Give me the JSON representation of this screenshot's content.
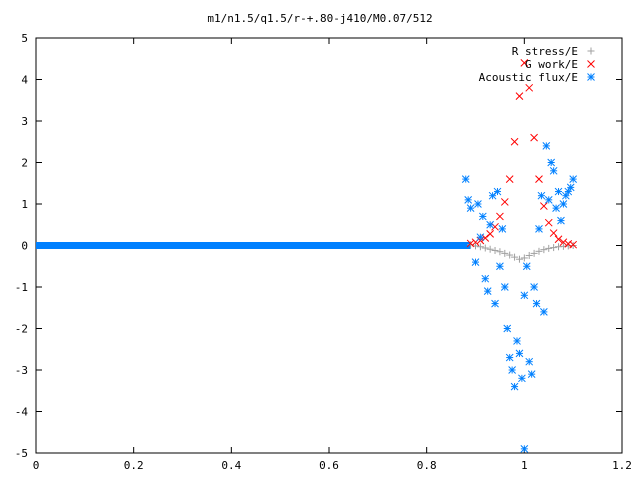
{
  "chart_data": {
    "type": "scatter",
    "title": "m1/n1.5/q1.5/r-+.80-j410/M0.07/512",
    "xlabel": "",
    "ylabel": "",
    "xlim": [
      0,
      1.2
    ],
    "ylim": [
      -5,
      5
    ],
    "x_ticks": [
      "0",
      "0.2",
      "0.4",
      "0.6",
      "0.8",
      "1",
      "1.2"
    ],
    "y_ticks": [
      "5",
      "4",
      "3",
      "2",
      "1",
      "0",
      "-1",
      "-2",
      "-3",
      "-4",
      "-5"
    ],
    "grid": false,
    "legend_position": "top-right",
    "series": [
      {
        "name": "R stress/E",
        "marker": "plus",
        "color": "#a0a0a0",
        "points": [
          [
            0.89,
            0.02
          ],
          [
            0.9,
            -0.01
          ],
          [
            0.91,
            -0.03
          ],
          [
            0.92,
            -0.06
          ],
          [
            0.93,
            -0.09
          ],
          [
            0.94,
            -0.12
          ],
          [
            0.95,
            -0.15
          ],
          [
            0.96,
            -0.19
          ],
          [
            0.97,
            -0.23
          ],
          [
            0.98,
            -0.28
          ],
          [
            0.99,
            -0.33
          ],
          [
            1.0,
            -0.3
          ],
          [
            1.01,
            -0.24
          ],
          [
            1.02,
            -0.19
          ],
          [
            1.03,
            -0.14
          ],
          [
            1.04,
            -0.1
          ],
          [
            1.05,
            -0.07
          ],
          [
            1.06,
            -0.05
          ],
          [
            1.07,
            -0.03
          ],
          [
            1.08,
            -0.02
          ],
          [
            1.09,
            -0.01
          ],
          [
            1.1,
            0.0
          ]
        ]
      },
      {
        "name": "G work/E",
        "marker": "cross",
        "color": "#ff0000",
        "points": [
          [
            0.89,
            0.05
          ],
          [
            0.9,
            0.08
          ],
          [
            0.91,
            0.12
          ],
          [
            0.92,
            0.18
          ],
          [
            0.93,
            0.28
          ],
          [
            0.94,
            0.45
          ],
          [
            0.95,
            0.7
          ],
          [
            0.96,
            1.05
          ],
          [
            0.97,
            1.6
          ],
          [
            0.98,
            2.5
          ],
          [
            0.99,
            3.6
          ],
          [
            1.0,
            4.4
          ],
          [
            1.01,
            3.8
          ],
          [
            1.02,
            2.6
          ],
          [
            1.03,
            1.6
          ],
          [
            1.04,
            0.95
          ],
          [
            1.05,
            0.55
          ],
          [
            1.06,
            0.3
          ],
          [
            1.07,
            0.15
          ],
          [
            1.08,
            0.08
          ],
          [
            1.09,
            0.04
          ],
          [
            1.1,
            0.02
          ]
        ]
      },
      {
        "name": "Acoustic flux/E",
        "marker": "star",
        "color": "#0080ff",
        "points": [
          [
            0.88,
            1.6
          ],
          [
            0.885,
            1.1
          ],
          [
            0.89,
            0.9
          ],
          [
            0.9,
            -0.4
          ],
          [
            0.905,
            1.0
          ],
          [
            0.91,
            0.2
          ],
          [
            0.915,
            0.7
          ],
          [
            0.92,
            -0.8
          ],
          [
            0.925,
            -1.1
          ],
          [
            0.93,
            0.5
          ],
          [
            0.935,
            1.2
          ],
          [
            0.94,
            -1.4
          ],
          [
            0.945,
            1.3
          ],
          [
            0.95,
            -0.5
          ],
          [
            0.955,
            0.4
          ],
          [
            0.96,
            -1.0
          ],
          [
            0.965,
            -2.0
          ],
          [
            0.97,
            -2.7
          ],
          [
            0.975,
            -3.0
          ],
          [
            0.98,
            -3.4
          ],
          [
            0.985,
            -2.3
          ],
          [
            0.99,
            -2.6
          ],
          [
            0.995,
            -3.2
          ],
          [
            1.0,
            -1.2
          ],
          [
            1.005,
            -0.5
          ],
          [
            1.01,
            -2.8
          ],
          [
            1.015,
            -3.1
          ],
          [
            1.02,
            -1.0
          ],
          [
            1.025,
            -1.4
          ],
          [
            1.03,
            0.4
          ],
          [
            1.035,
            1.2
          ],
          [
            1.04,
            -1.6
          ],
          [
            1.045,
            2.4
          ],
          [
            1.05,
            1.1
          ],
          [
            1.055,
            2.0
          ],
          [
            1.06,
            1.8
          ],
          [
            1.065,
            0.9
          ],
          [
            1.07,
            1.3
          ],
          [
            1.075,
            0.6
          ],
          [
            1.08,
            1.0
          ],
          [
            1.085,
            1.2
          ],
          [
            1.09,
            1.3
          ],
          [
            1.095,
            1.4
          ],
          [
            1.1,
            1.6
          ],
          [
            1.0,
            -4.9
          ]
        ]
      }
    ]
  }
}
